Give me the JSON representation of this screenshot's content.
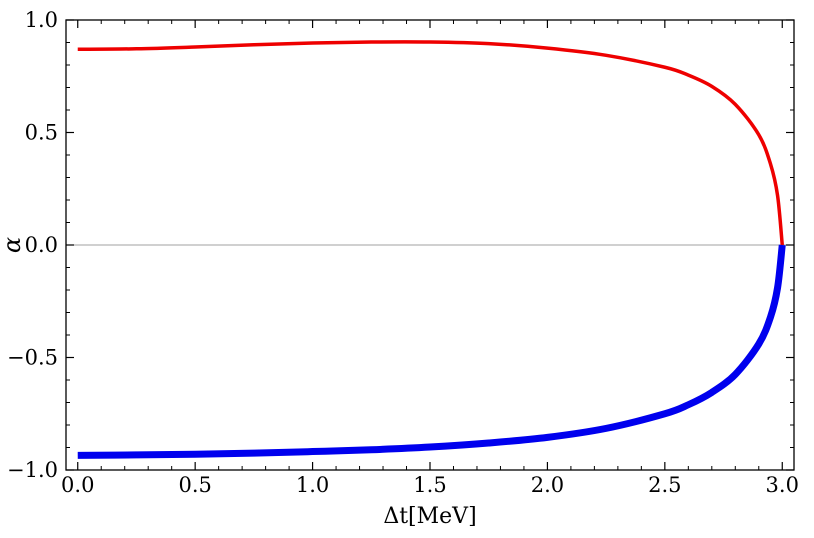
{
  "chart_data": {
    "type": "line",
    "title": "",
    "xlabel": "Δt[MeV]",
    "ylabel": "α",
    "xlim": [
      -0.05,
      3.05
    ],
    "ylim": [
      -1.0,
      1.0
    ],
    "grid": false,
    "legend": "none",
    "x_ticks": [
      0.0,
      0.5,
      1.0,
      1.5,
      2.0,
      2.5,
      3.0
    ],
    "x_tick_labels": [
      "0.0",
      "0.5",
      "1.0",
      "1.5",
      "2.0",
      "2.5",
      "3.0"
    ],
    "y_ticks": [
      -1.0,
      -0.5,
      0.0,
      0.5,
      1.0
    ],
    "y_tick_labels": [
      "−1.0",
      "−0.5",
      "0.0",
      "0.5",
      "1.0"
    ],
    "reference_line": {
      "y": 0.0,
      "color": "#a0a0a0"
    },
    "series": [
      {
        "color": "#ee0000",
        "x": [
          0.0,
          0.25,
          0.5,
          0.75,
          1.0,
          1.25,
          1.5,
          1.75,
          2.0,
          2.25,
          2.5,
          2.6,
          2.7,
          2.8,
          2.9,
          2.95,
          2.98,
          3.0
        ],
        "y": [
          0.87,
          0.872,
          0.88,
          0.89,
          0.898,
          0.902,
          0.902,
          0.895,
          0.875,
          0.843,
          0.79,
          0.755,
          0.705,
          0.625,
          0.49,
          0.36,
          0.22,
          0.0
        ]
      },
      {
        "color": "#0000ee",
        "x": [
          0.0,
          0.25,
          0.5,
          0.75,
          1.0,
          1.25,
          1.5,
          1.75,
          2.0,
          2.25,
          2.5,
          2.6,
          2.7,
          2.8,
          2.9,
          2.95,
          2.98,
          3.0
        ],
        "y": [
          -0.935,
          -0.933,
          -0.93,
          -0.925,
          -0.918,
          -0.91,
          -0.898,
          -0.88,
          -0.855,
          -0.815,
          -0.75,
          -0.71,
          -0.655,
          -0.575,
          -0.44,
          -0.32,
          -0.19,
          0.0
        ]
      }
    ]
  }
}
